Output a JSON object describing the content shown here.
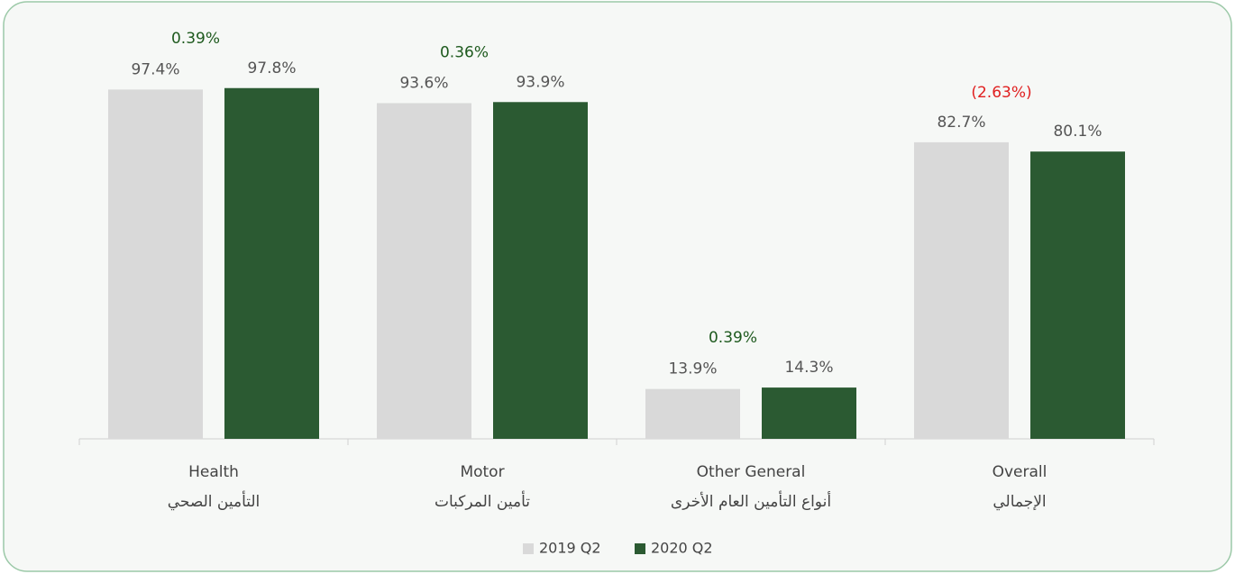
{
  "chart_data": {
    "type": "bar",
    "categories": [
      "Health",
      "Motor",
      "Other General",
      "Overall"
    ],
    "categories_ar": [
      "التأمين الصحي",
      "تأمين المركبات",
      "أنواع التأمين العام الأخرى",
      "الإجمالي"
    ],
    "series": [
      {
        "name": "2019 Q2",
        "color": "#d9d9d9",
        "values": [
          97.4,
          93.6,
          13.9,
          82.7
        ],
        "value_labels": [
          "97.4%",
          "93.6%",
          "13.9%",
          "82.7%"
        ]
      },
      {
        "name": "2020 Q2",
        "color": "#2b5a32",
        "values": [
          97.8,
          93.9,
          14.3,
          80.1
        ],
        "value_labels": [
          "97.8%",
          "93.9%",
          "14.3%",
          "80.1%"
        ]
      }
    ],
    "annotations": [
      {
        "text": "0.39%",
        "color": "#1e5a1e"
      },
      {
        "text": "0.36%",
        "color": "#1e5a1e"
      },
      {
        "text": "0.39%",
        "color": "#1e5a1e"
      },
      {
        "text": "(2.63%)",
        "color": "#e02020"
      }
    ],
    "ylim": [
      0,
      100
    ],
    "legend": "bottom"
  }
}
